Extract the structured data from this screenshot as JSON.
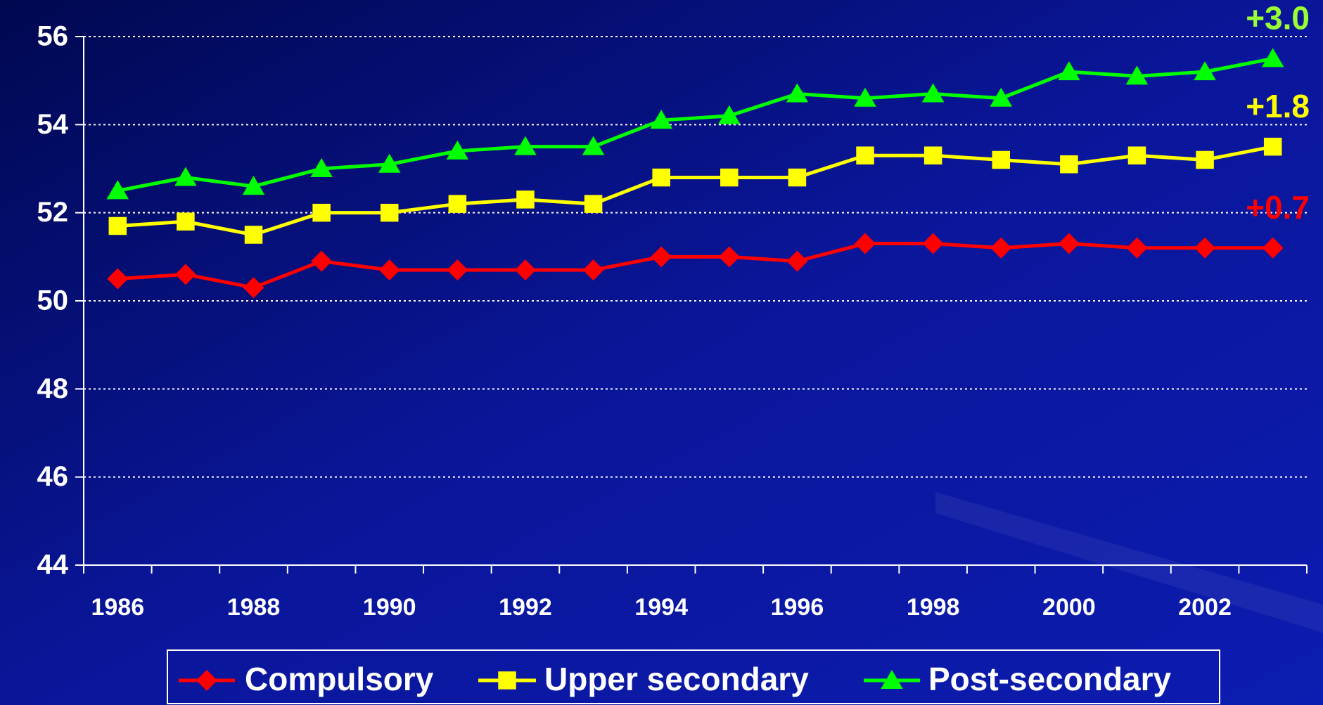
{
  "chart_data": {
    "type": "line",
    "categories": [
      "1986",
      null,
      "1988",
      null,
      "1990",
      null,
      "1992",
      null,
      "1994",
      null,
      "1996",
      null,
      "1998",
      null,
      "2000",
      null,
      "2002",
      null
    ],
    "series": [
      {
        "name": "Compulsory",
        "color": "#ff0000",
        "marker": "diamond",
        "values": [
          50.5,
          50.6,
          50.3,
          50.9,
          50.7,
          50.7,
          50.7,
          50.7,
          51.0,
          51.0,
          50.9,
          51.3,
          51.3,
          51.2,
          51.3,
          51.2,
          51.2,
          51.2
        ]
      },
      {
        "name": "Upper secondary",
        "color": "#ffff00",
        "marker": "square",
        "values": [
          51.7,
          51.8,
          51.5,
          52.0,
          52.0,
          52.2,
          52.3,
          52.2,
          52.8,
          52.8,
          52.8,
          53.3,
          53.3,
          53.2,
          53.1,
          53.3,
          53.2,
          53.5
        ]
      },
      {
        "name": "Post-secondary",
        "color": "#00ff00",
        "marker": "triangle",
        "values": [
          52.5,
          52.8,
          52.6,
          53.0,
          53.1,
          53.4,
          53.5,
          53.5,
          54.1,
          54.2,
          54.7,
          54.6,
          54.7,
          54.6,
          55.2,
          55.1,
          55.2,
          55.5
        ]
      }
    ],
    "annotations": [
      {
        "text": "+3.0",
        "color": "#99ff33"
      },
      {
        "text": "+1.8",
        "color": "#ffff00"
      },
      {
        "text": "+0.7",
        "color": "#ff0000"
      }
    ],
    "ylim": [
      44,
      56
    ],
    "yticks": [
      44,
      46,
      48,
      50,
      52,
      54,
      56
    ],
    "grid": true,
    "legend": "bottom"
  }
}
